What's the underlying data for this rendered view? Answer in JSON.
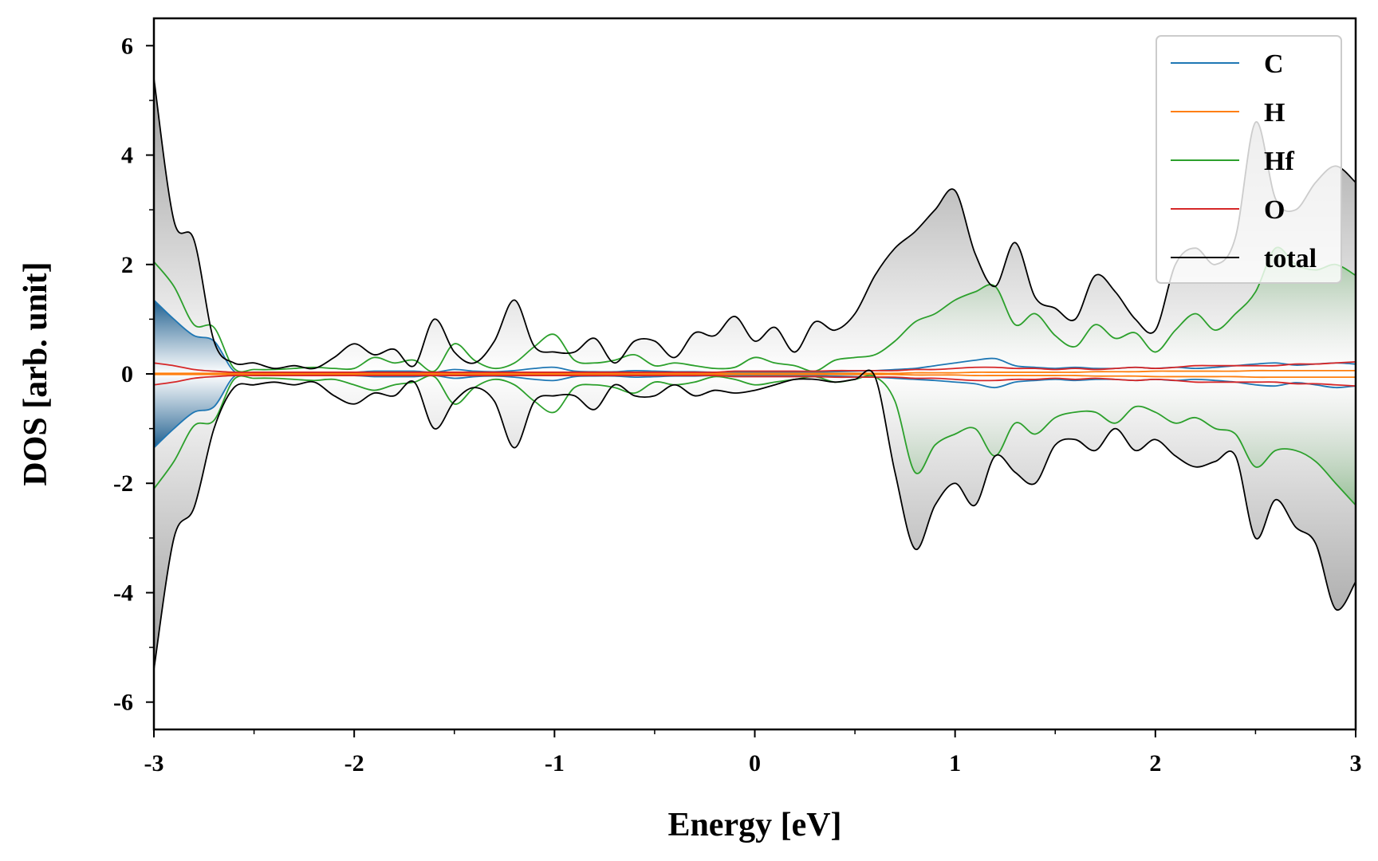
{
  "chart_data": {
    "type": "line",
    "title": "",
    "xlabel": "Energy [eV]",
    "ylabel": "DOS [arb. unit]",
    "xlim": [
      -3,
      3
    ],
    "ylim": [
      -6.5,
      6.5
    ],
    "x_major_ticks": [
      -3,
      -2,
      -1,
      0,
      1,
      2,
      3
    ],
    "x_tick_labels": [
      "-3",
      "-2",
      "-1",
      "0",
      "1",
      "2",
      "3"
    ],
    "y_major_ticks": [
      -6,
      -4,
      -2,
      0,
      2,
      4,
      6
    ],
    "y_tick_labels": [
      "-6",
      "-4",
      "-2",
      "0",
      "2",
      "4",
      "6"
    ],
    "grid": false,
    "legend_position": "top-right",
    "spin_mirrored": true,
    "x": [
      -3.0,
      -2.9,
      -2.8,
      -2.7,
      -2.6,
      -2.5,
      -2.4,
      -2.3,
      -2.2,
      -2.1,
      -2.0,
      -1.9,
      -1.8,
      -1.7,
      -1.6,
      -1.5,
      -1.4,
      -1.3,
      -1.2,
      -1.1,
      -1.0,
      -0.9,
      -0.8,
      -0.7,
      -0.6,
      -0.5,
      -0.4,
      -0.3,
      -0.2,
      -0.1,
      0.0,
      0.1,
      0.2,
      0.3,
      0.4,
      0.5,
      0.6,
      0.7,
      0.8,
      0.9,
      1.0,
      1.1,
      1.2,
      1.3,
      1.4,
      1.5,
      1.6,
      1.7,
      1.8,
      1.9,
      2.0,
      2.1,
      2.2,
      2.3,
      2.4,
      2.5,
      2.6,
      2.7,
      2.8,
      2.9,
      3.0
    ],
    "series": [
      {
        "name": "C",
        "color": "#1f77b4",
        "up": [
          1.35,
          1.0,
          0.7,
          0.6,
          0.05,
          0.02,
          0.02,
          0.02,
          0.02,
          0.03,
          0.03,
          0.05,
          0.05,
          0.05,
          0.03,
          0.08,
          0.05,
          0.04,
          0.06,
          0.1,
          0.12,
          0.05,
          0.04,
          0.04,
          0.06,
          0.05,
          0.04,
          0.04,
          0.03,
          0.03,
          0.03,
          0.03,
          0.03,
          0.03,
          0.04,
          0.05,
          0.06,
          0.08,
          0.1,
          0.15,
          0.2,
          0.25,
          0.28,
          0.15,
          0.12,
          0.1,
          0.12,
          0.1,
          0.1,
          0.12,
          0.1,
          0.12,
          0.1,
          0.12,
          0.15,
          0.18,
          0.2,
          0.16,
          0.18,
          0.2,
          0.18
        ],
        "down": [
          -1.35,
          -1.0,
          -0.7,
          -0.6,
          -0.05,
          -0.02,
          -0.02,
          -0.02,
          -0.02,
          -0.03,
          -0.03,
          -0.05,
          -0.05,
          -0.05,
          -0.03,
          -0.08,
          -0.05,
          -0.04,
          -0.06,
          -0.1,
          -0.12,
          -0.05,
          -0.04,
          -0.04,
          -0.06,
          -0.05,
          -0.04,
          -0.04,
          -0.03,
          -0.03,
          -0.03,
          -0.03,
          -0.03,
          -0.03,
          -0.04,
          -0.05,
          -0.06,
          -0.08,
          -0.1,
          -0.12,
          -0.15,
          -0.18,
          -0.25,
          -0.15,
          -0.12,
          -0.1,
          -0.12,
          -0.1,
          -0.1,
          -0.12,
          -0.1,
          -0.12,
          -0.1,
          -0.12,
          -0.15,
          -0.2,
          -0.22,
          -0.16,
          -0.2,
          -0.25,
          -0.22
        ]
      },
      {
        "name": "H",
        "color": "#ff7f0e",
        "up": [
          0.01,
          0.01,
          0.01,
          0.01,
          0.01,
          0.01,
          0.01,
          0.01,
          0.01,
          0.01,
          0.01,
          0.01,
          0.01,
          0.01,
          0.01,
          0.01,
          0.01,
          0.01,
          0.01,
          0.01,
          0.01,
          0.01,
          0.01,
          0.01,
          0.01,
          0.01,
          0.01,
          0.01,
          0.01,
          0.01,
          0.01,
          0.01,
          0.01,
          0.01,
          0.01,
          0.01,
          0.01,
          0.01,
          0.02,
          0.02,
          0.02,
          0.03,
          0.03,
          0.03,
          0.03,
          0.03,
          0.03,
          0.04,
          0.04,
          0.04,
          0.05,
          0.05,
          0.05,
          0.05,
          0.05,
          0.06,
          0.06,
          0.06,
          0.06,
          0.06,
          0.06
        ],
        "down": [
          -0.01,
          -0.01,
          -0.01,
          -0.01,
          -0.01,
          -0.01,
          -0.01,
          -0.01,
          -0.01,
          -0.01,
          -0.01,
          -0.01,
          -0.01,
          -0.01,
          -0.01,
          -0.01,
          -0.01,
          -0.01,
          -0.01,
          -0.01,
          -0.01,
          -0.01,
          -0.01,
          -0.01,
          -0.01,
          -0.01,
          -0.01,
          -0.01,
          -0.01,
          -0.01,
          -0.01,
          -0.01,
          -0.01,
          -0.01,
          -0.01,
          -0.01,
          -0.01,
          -0.01,
          -0.02,
          -0.02,
          -0.02,
          -0.03,
          -0.03,
          -0.03,
          -0.03,
          -0.03,
          -0.03,
          -0.04,
          -0.04,
          -0.04,
          -0.05,
          -0.05,
          -0.05,
          -0.05,
          -0.05,
          -0.06,
          -0.06,
          -0.06,
          -0.06,
          -0.06,
          -0.06
        ]
      },
      {
        "name": "Hf",
        "color": "#2ca02c",
        "up": [
          2.05,
          1.6,
          0.9,
          0.85,
          0.1,
          0.08,
          0.08,
          0.1,
          0.12,
          0.1,
          0.1,
          0.3,
          0.2,
          0.25,
          0.05,
          0.55,
          0.25,
          0.1,
          0.2,
          0.5,
          0.72,
          0.25,
          0.2,
          0.25,
          0.35,
          0.15,
          0.2,
          0.15,
          0.1,
          0.12,
          0.3,
          0.2,
          0.15,
          0.05,
          0.25,
          0.3,
          0.35,
          0.6,
          0.95,
          1.1,
          1.35,
          1.5,
          1.6,
          0.9,
          1.1,
          0.7,
          0.5,
          0.9,
          0.65,
          0.75,
          0.4,
          0.8,
          1.1,
          0.8,
          1.1,
          1.5,
          2.3,
          2.0,
          1.9,
          2.0,
          1.8
        ],
        "down": [
          -2.1,
          -1.6,
          -0.95,
          -0.85,
          -0.1,
          -0.08,
          -0.08,
          -0.1,
          -0.12,
          -0.1,
          -0.2,
          -0.3,
          -0.2,
          -0.15,
          -0.05,
          -0.55,
          -0.25,
          -0.1,
          -0.2,
          -0.5,
          -0.7,
          -0.25,
          -0.2,
          -0.25,
          -0.35,
          -0.15,
          -0.2,
          -0.15,
          -0.05,
          -0.1,
          -0.2,
          -0.15,
          -0.1,
          -0.05,
          -0.15,
          -0.1,
          -0.05,
          -0.5,
          -1.8,
          -1.3,
          -1.1,
          -1.0,
          -1.5,
          -0.9,
          -1.1,
          -0.8,
          -0.7,
          -0.7,
          -0.9,
          -0.6,
          -0.7,
          -0.9,
          -0.8,
          -1.0,
          -1.1,
          -1.7,
          -1.4,
          -1.4,
          -1.6,
          -2.0,
          -2.4
        ],
        "fill_right_of": 0.6
      },
      {
        "name": "O",
        "color": "#d62728",
        "up": [
          0.2,
          0.15,
          0.08,
          0.05,
          0.03,
          0.03,
          0.03,
          0.03,
          0.03,
          0.03,
          0.03,
          0.03,
          0.03,
          0.03,
          0.03,
          0.03,
          0.03,
          0.03,
          0.03,
          0.03,
          0.03,
          0.03,
          0.03,
          0.03,
          0.03,
          0.03,
          0.03,
          0.03,
          0.03,
          0.05,
          0.05,
          0.05,
          0.05,
          0.05,
          0.06,
          0.06,
          0.06,
          0.06,
          0.08,
          0.08,
          0.1,
          0.12,
          0.12,
          0.1,
          0.1,
          0.08,
          0.1,
          0.08,
          0.1,
          0.12,
          0.1,
          0.12,
          0.15,
          0.15,
          0.15,
          0.15,
          0.15,
          0.18,
          0.18,
          0.2,
          0.22
        ],
        "down": [
          -0.2,
          -0.15,
          -0.08,
          -0.05,
          -0.03,
          -0.03,
          -0.03,
          -0.03,
          -0.03,
          -0.03,
          -0.03,
          -0.03,
          -0.03,
          -0.03,
          -0.03,
          -0.03,
          -0.03,
          -0.03,
          -0.03,
          -0.03,
          -0.03,
          -0.03,
          -0.03,
          -0.03,
          -0.03,
          -0.03,
          -0.03,
          -0.03,
          -0.03,
          -0.05,
          -0.05,
          -0.05,
          -0.05,
          -0.05,
          -0.06,
          -0.06,
          -0.06,
          -0.06,
          -0.08,
          -0.08,
          -0.1,
          -0.12,
          -0.12,
          -0.1,
          -0.1,
          -0.08,
          -0.1,
          -0.08,
          -0.1,
          -0.12,
          -0.1,
          -0.12,
          -0.15,
          -0.15,
          -0.15,
          -0.15,
          -0.15,
          -0.18,
          -0.18,
          -0.2,
          -0.22
        ]
      },
      {
        "name": "total",
        "color": "#000000",
        "up": [
          5.4,
          2.8,
          2.45,
          0.6,
          0.2,
          0.2,
          0.1,
          0.15,
          0.1,
          0.3,
          0.55,
          0.35,
          0.45,
          0.15,
          1.0,
          0.4,
          0.2,
          0.6,
          1.35,
          0.5,
          0.4,
          0.4,
          0.65,
          0.2,
          0.6,
          0.6,
          0.3,
          0.75,
          0.7,
          1.05,
          0.6,
          0.85,
          0.4,
          0.95,
          0.8,
          1.1,
          1.8,
          2.3,
          2.6,
          3.0,
          3.35,
          2.2,
          1.6,
          2.4,
          1.4,
          1.2,
          1.0,
          1.8,
          1.5,
          1.0,
          0.8,
          2.0,
          2.3,
          2.0,
          2.5,
          4.6,
          3.2,
          3.0,
          3.5,
          3.8,
          3.5
        ],
        "down": [
          -5.4,
          -3.0,
          -2.45,
          -1.0,
          -0.25,
          -0.2,
          -0.15,
          -0.2,
          -0.15,
          -0.4,
          -0.55,
          -0.35,
          -0.4,
          -0.15,
          -1.0,
          -0.5,
          -0.25,
          -0.5,
          -1.35,
          -0.5,
          -0.4,
          -0.4,
          -0.65,
          -0.2,
          -0.4,
          -0.4,
          -0.2,
          -0.4,
          -0.3,
          -0.35,
          -0.3,
          -0.2,
          -0.1,
          -0.1,
          -0.15,
          -0.1,
          -0.05,
          -1.8,
          -3.2,
          -2.4,
          -2.0,
          -2.4,
          -1.5,
          -1.8,
          -2.0,
          -1.3,
          -1.2,
          -1.4,
          -1.0,
          -1.4,
          -1.2,
          -1.5,
          -1.7,
          -1.6,
          -1.5,
          -3.0,
          -2.3,
          -2.8,
          -3.1,
          -4.3,
          -3.8
        ]
      }
    ]
  }
}
